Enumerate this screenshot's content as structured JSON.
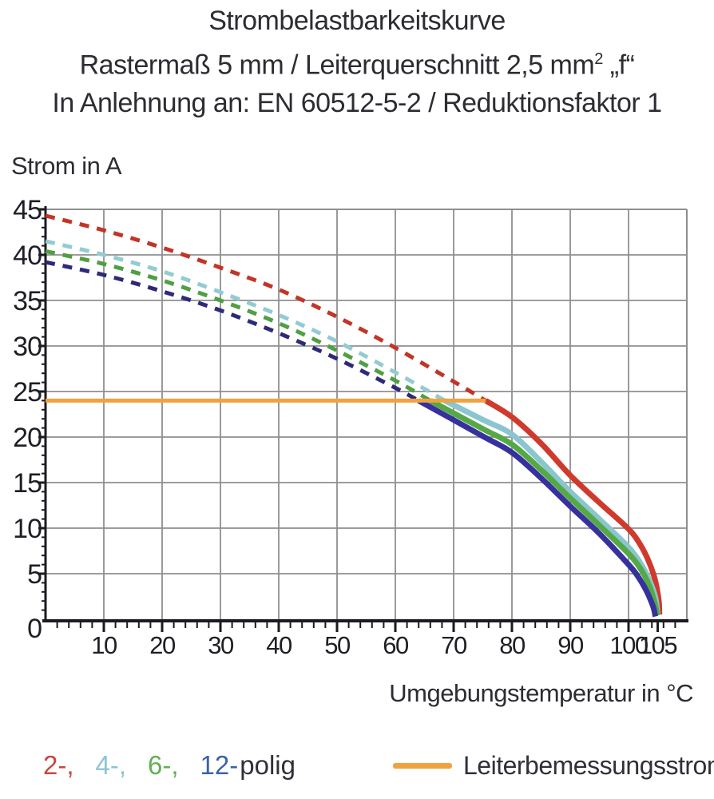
{
  "title": {
    "line1": "Strombelastbarkeitskurve",
    "line2_pre": "Rastermaß 5 mm / Leiterquerschnitt 2,5 mm",
    "line2_sup": "2",
    "line2_post": " „f“",
    "line3": "In Anlehnung an: EN 60512-5-2 / Reduktionsfaktor 1"
  },
  "axes": {
    "y_title": "Strom in A",
    "x_title": "Umgebungstemperatur in °C",
    "origin_label": "0"
  },
  "legend": {
    "pole_items": [
      {
        "label": "2-,",
        "color": "#c9463c"
      },
      {
        "label": "4-,",
        "color": "#8ec5d2"
      },
      {
        "label": "6-,",
        "color": "#62b054"
      },
      {
        "label": "12-",
        "color": "#3c63a9"
      }
    ],
    "suffix_label": "polig",
    "suffix_color": "#303038",
    "limit_label": "Leiterbemessungsstrom",
    "limit_color": "#f0a23f"
  },
  "chart_data": {
    "type": "line",
    "title": "Strombelastbarkeitskurve",
    "subtitle": "Rastermaß 5 mm / Leiterquerschnitt 2,5 mm² „f“ — In Anlehnung an: EN 60512-5-2 / Reduktionsfaktor 1",
    "xlabel": "Umgebungstemperatur in °C",
    "ylabel": "Strom in A",
    "xlim": [
      0,
      110
    ],
    "ylim": [
      0,
      45
    ],
    "x_ticks": [
      10,
      20,
      30,
      40,
      50,
      60,
      70,
      80,
      90,
      100,
      105
    ],
    "y_ticks": [
      45,
      40,
      35,
      30,
      25,
      20,
      15,
      10,
      5
    ],
    "x_gridline_step": 10,
    "y_gridline_step": 5,
    "x_minor_tick_step": 2,
    "y_minor_tick_step": 1,
    "grid_on": true,
    "grid_color": "#8f8f8f",
    "axis_color": "#1b1b20",
    "legend_position": "bottom",
    "limit_line": {
      "name": "Leiterbemessungsstrom",
      "y": 24,
      "x_start": 0,
      "x_end": 75.5,
      "color": "#f0a23f"
    },
    "series": [
      {
        "name": "2-polig",
        "color": "#cf3a2d",
        "dash_color": "#c23527",
        "dashed_points": [
          [
            0,
            44.3
          ],
          [
            10,
            42.7
          ],
          [
            20,
            40.8
          ],
          [
            30,
            38.6
          ],
          [
            40,
            36.2
          ],
          [
            50,
            33.2
          ],
          [
            60,
            29.8
          ],
          [
            70,
            26.1
          ],
          [
            75.5,
            24
          ]
        ],
        "solid_points": [
          [
            75.5,
            24
          ],
          [
            80,
            22.2
          ],
          [
            85,
            19.3
          ],
          [
            90,
            15.8
          ],
          [
            95,
            12.8
          ],
          [
            100,
            9.9
          ],
          [
            102,
            8.2
          ],
          [
            103.5,
            6.3
          ],
          [
            104.6,
            4.2
          ],
          [
            105.2,
            2.0
          ],
          [
            105.3,
            0.5
          ]
        ]
      },
      {
        "name": "4-polig",
        "color": "#8ac5d0",
        "dash_color": "#93cbd3",
        "dashed_points": [
          [
            0,
            41.5
          ],
          [
            10,
            40.0
          ],
          [
            20,
            38.2
          ],
          [
            30,
            35.9
          ],
          [
            40,
            33.4
          ],
          [
            50,
            30.5
          ],
          [
            60,
            27.1
          ],
          [
            68.5,
            24
          ]
        ],
        "solid_points": [
          [
            68.5,
            24
          ],
          [
            75,
            21.9
          ],
          [
            80,
            20.3
          ],
          [
            85,
            17.3
          ],
          [
            90,
            14.0
          ],
          [
            95,
            11.0
          ],
          [
            100,
            7.9
          ],
          [
            102,
            6.2
          ],
          [
            103.5,
            4.4
          ],
          [
            104.6,
            2.4
          ],
          [
            105.0,
            0.5
          ]
        ]
      },
      {
        "name": "6-polig",
        "color": "#55a945",
        "dash_color": "#4f9f43",
        "dashed_points": [
          [
            0,
            40.4
          ],
          [
            10,
            39.0
          ],
          [
            20,
            37.2
          ],
          [
            30,
            35.0
          ],
          [
            40,
            32.5
          ],
          [
            50,
            29.5
          ],
          [
            60,
            26.2
          ],
          [
            66,
            24
          ]
        ],
        "solid_points": [
          [
            66,
            24
          ],
          [
            75,
            20.9
          ],
          [
            80,
            19.2
          ],
          [
            85,
            16.4
          ],
          [
            90,
            13.3
          ],
          [
            95,
            10.3
          ],
          [
            100,
            7.2
          ],
          [
            102,
            5.6
          ],
          [
            103.5,
            3.8
          ],
          [
            104.5,
            1.8
          ],
          [
            104.9,
            0.4
          ]
        ]
      },
      {
        "name": "12-polig",
        "color": "#37319e",
        "dash_color": "#2e2a79",
        "dashed_points": [
          [
            0,
            39.2
          ],
          [
            10,
            37.8
          ],
          [
            20,
            36.0
          ],
          [
            30,
            33.9
          ],
          [
            40,
            31.4
          ],
          [
            50,
            28.6
          ],
          [
            60,
            25.4
          ],
          [
            64,
            24
          ]
        ],
        "solid_points": [
          [
            64,
            24
          ],
          [
            75,
            20.1
          ],
          [
            80,
            18.3
          ],
          [
            85,
            15.5
          ],
          [
            90,
            12.4
          ],
          [
            95,
            9.4
          ],
          [
            100,
            6.0
          ],
          [
            101.5,
            4.8
          ],
          [
            103,
            3.2
          ],
          [
            104.2,
            1.4
          ],
          [
            104.6,
            0.3
          ]
        ]
      }
    ]
  }
}
